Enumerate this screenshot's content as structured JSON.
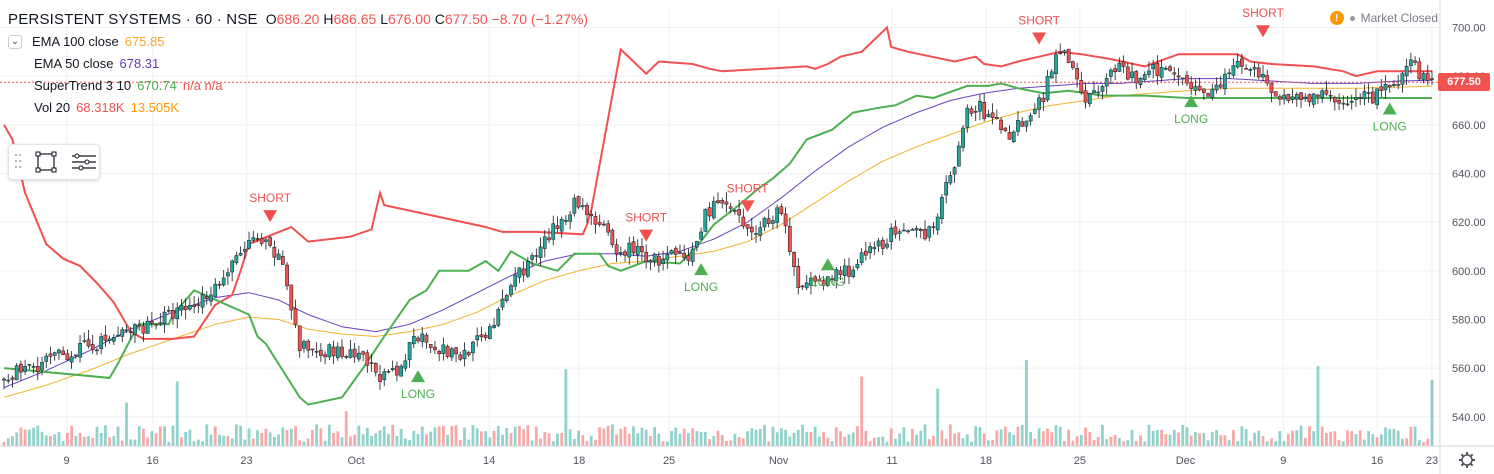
{
  "header": {
    "symbol": "PERSISTENT SYSTEMS · 60 · NSE",
    "ohlc": {
      "o_label": "O",
      "o": "686.20",
      "h_label": "H",
      "h": "686.65",
      "l_label": "L",
      "l": "676.00",
      "c_label": "C",
      "c": "677.50",
      "change": "−8.70 (−1.27%)"
    }
  },
  "indicators": [
    {
      "name": "EMA 100 close",
      "value": "675.85",
      "color": "#f0a830"
    },
    {
      "name": "EMA 50 close",
      "value": "678.31",
      "color": "#673ab7"
    },
    {
      "name": "SuperTrend 3 10",
      "value": "670.74",
      "extra": "n/a  n/a",
      "color": "#4caf50"
    },
    {
      "name": "Vol 20",
      "value": "68.318K",
      "extra": "13.505K",
      "color": "#ef5350"
    }
  ],
  "status": {
    "market": "Market Closed",
    "warning_glyph": "!"
  },
  "current_price": {
    "label": "677.50",
    "value": 677.5
  },
  "chart_data": {
    "type": "candlestick",
    "x_ticks": [
      "9",
      "16",
      "23",
      "Oct",
      "14",
      "18",
      "25",
      "Nov",
      "11",
      "18",
      "25",
      "Dec",
      "9",
      "16",
      "23"
    ],
    "y_ticks": [
      540,
      560,
      580,
      600,
      620,
      640,
      660,
      680,
      700
    ],
    "ylim": [
      528,
      708
    ],
    "price_path": [
      [
        0,
        556
      ],
      [
        10,
        563
      ],
      [
        25,
        572
      ],
      [
        37,
        580
      ],
      [
        45,
        586
      ],
      [
        52,
        597
      ],
      [
        58,
        612
      ],
      [
        62,
        610
      ],
      [
        66,
        603
      ],
      [
        70,
        568
      ],
      [
        75,
        568
      ],
      [
        80,
        566
      ],
      [
        85,
        563
      ],
      [
        90,
        556
      ],
      [
        94,
        558
      ],
      [
        97,
        575
      ],
      [
        100,
        572
      ],
      [
        104,
        567
      ],
      [
        108,
        565
      ],
      [
        113,
        572
      ],
      [
        117,
        582
      ],
      [
        121,
        598
      ],
      [
        126,
        606
      ],
      [
        131,
        619
      ],
      [
        135,
        628
      ],
      [
        138,
        625
      ],
      [
        142,
        617
      ],
      [
        145,
        605
      ],
      [
        148,
        610
      ],
      [
        152,
        606
      ],
      [
        155,
        604
      ],
      [
        158,
        606
      ],
      [
        162,
        604
      ],
      [
        164,
        612
      ],
      [
        166,
        623
      ],
      [
        168,
        628
      ],
      [
        172,
        625
      ],
      [
        176,
        615
      ],
      [
        180,
        620
      ],
      [
        184,
        626
      ],
      [
        186,
        606
      ],
      [
        188,
        594
      ],
      [
        190,
        598
      ],
      [
        193,
        593
      ],
      [
        197,
        599
      ],
      [
        201,
        601
      ],
      [
        203,
        605
      ],
      [
        206,
        609
      ],
      [
        210,
        615
      ],
      [
        214,
        614
      ],
      [
        218,
        616
      ],
      [
        220,
        620
      ],
      [
        222,
        628
      ],
      [
        224,
        640
      ],
      [
        226,
        650
      ],
      [
        228,
        665
      ],
      [
        231,
        667
      ],
      [
        233,
        663
      ],
      [
        235,
        661
      ],
      [
        238,
        656
      ],
      [
        241,
        662
      ],
      [
        244,
        667
      ],
      [
        246,
        672
      ],
      [
        248,
        684
      ],
      [
        250,
        692
      ],
      [
        252,
        688
      ],
      [
        254,
        680
      ],
      [
        256,
        671
      ],
      [
        258,
        672
      ],
      [
        260,
        676
      ],
      [
        263,
        684
      ],
      [
        266,
        680
      ],
      [
        269,
        678
      ],
      [
        272,
        682
      ],
      [
        276,
        683
      ],
      [
        279,
        681
      ],
      [
        282,
        675
      ],
      [
        285,
        674
      ],
      [
        288,
        676
      ],
      [
        291,
        684
      ],
      [
        294,
        685
      ],
      [
        297,
        681
      ],
      [
        300,
        672
      ],
      [
        305,
        672
      ],
      [
        310,
        671
      ],
      [
        315,
        671
      ],
      [
        320,
        670
      ],
      [
        325,
        672
      ],
      [
        330,
        678
      ],
      [
        333,
        684
      ],
      [
        336,
        680
      ],
      [
        338,
        677.5
      ]
    ],
    "supertrend_short": [
      [
        0,
        660
      ],
      [
        2,
        654
      ],
      [
        5,
        632
      ],
      [
        10,
        611
      ],
      [
        14,
        605
      ],
      [
        18,
        602
      ],
      [
        22,
        595
      ],
      [
        26,
        587
      ],
      [
        30,
        575
      ],
      [
        33,
        572
      ],
      [
        40,
        572
      ],
      [
        45,
        573
      ],
      [
        50,
        586
      ],
      [
        54,
        590
      ],
      [
        56,
        600
      ],
      [
        58,
        611
      ],
      [
        68,
        618
      ],
      [
        72,
        612
      ],
      [
        82,
        614
      ],
      [
        87,
        617
      ],
      [
        89,
        632
      ],
      [
        90,
        627
      ],
      [
        114,
        618
      ],
      [
        118,
        616
      ],
      [
        126,
        616
      ],
      [
        137,
        615
      ],
      [
        138,
        619
      ],
      [
        139,
        625
      ],
      [
        146,
        691
      ],
      [
        152,
        681
      ],
      [
        155,
        686
      ],
      [
        163,
        685
      ],
      [
        167,
        683
      ],
      [
        170,
        682
      ],
      [
        190,
        684
      ],
      [
        192,
        683
      ],
      [
        195,
        685
      ],
      [
        198,
        688
      ],
      [
        203,
        690
      ],
      [
        209,
        700
      ],
      [
        210,
        692
      ],
      [
        214,
        690
      ],
      [
        225,
        686
      ],
      [
        230,
        688
      ],
      [
        232,
        685
      ],
      [
        236,
        684
      ],
      [
        240,
        686
      ],
      [
        245,
        688
      ],
      [
        250,
        690
      ],
      [
        255,
        689
      ],
      [
        262,
        687
      ],
      [
        270,
        684
      ],
      [
        278,
        689
      ],
      [
        292,
        689
      ],
      [
        295,
        686
      ],
      [
        300,
        685
      ],
      [
        310,
        684
      ],
      [
        317,
        682
      ],
      [
        320,
        680
      ],
      [
        325,
        682
      ],
      [
        330,
        682
      ],
      [
        338,
        682
      ]
    ],
    "supertrend_long": [
      [
        0,
        560
      ],
      [
        25,
        556
      ],
      [
        27,
        562
      ],
      [
        30,
        572
      ],
      [
        32,
        578
      ],
      [
        39,
        578
      ],
      [
        40,
        582
      ],
      [
        45,
        592
      ],
      [
        58,
        582
      ],
      [
        60,
        573
      ],
      [
        62,
        570
      ],
      [
        70,
        548
      ],
      [
        72,
        545
      ],
      [
        80,
        548
      ],
      [
        85,
        560
      ],
      [
        90,
        573
      ],
      [
        96,
        588
      ],
      [
        100,
        592
      ],
      [
        103,
        600
      ],
      [
        110,
        600
      ],
      [
        114,
        604
      ],
      [
        117,
        600
      ],
      [
        120,
        608
      ],
      [
        125,
        603
      ],
      [
        131,
        600
      ],
      [
        135,
        607
      ],
      [
        141,
        607
      ],
      [
        143,
        602
      ],
      [
        146,
        600
      ],
      [
        152,
        604
      ],
      [
        160,
        603
      ],
      [
        164,
        610
      ],
      [
        168,
        619
      ],
      [
        174,
        627
      ],
      [
        178,
        633
      ],
      [
        182,
        638
      ],
      [
        186,
        644
      ],
      [
        190,
        654
      ],
      [
        196,
        658
      ],
      [
        201,
        665
      ],
      [
        207,
        667
      ],
      [
        211,
        668
      ],
      [
        216,
        672
      ],
      [
        220,
        671
      ],
      [
        228,
        676
      ],
      [
        233,
        676
      ],
      [
        236,
        677
      ],
      [
        240,
        675
      ],
      [
        246,
        673
      ],
      [
        252,
        674
      ],
      [
        260,
        672
      ],
      [
        270,
        672
      ],
      [
        280,
        671
      ],
      [
        290,
        671
      ],
      [
        300,
        671
      ],
      [
        318,
        671
      ],
      [
        325,
        671
      ],
      [
        336,
        671
      ],
      [
        338,
        671
      ]
    ],
    "ema100": [
      [
        0,
        548
      ],
      [
        10,
        553
      ],
      [
        20,
        559
      ],
      [
        30,
        566
      ],
      [
        40,
        572
      ],
      [
        50,
        578
      ],
      [
        58,
        581
      ],
      [
        65,
        580
      ],
      [
        72,
        576
      ],
      [
        80,
        574
      ],
      [
        88,
        573
      ],
      [
        96,
        575
      ],
      [
        104,
        578
      ],
      [
        112,
        583
      ],
      [
        120,
        590
      ],
      [
        128,
        596
      ],
      [
        136,
        600
      ],
      [
        144,
        603
      ],
      [
        152,
        604
      ],
      [
        160,
        606
      ],
      [
        168,
        608
      ],
      [
        176,
        612
      ],
      [
        184,
        619
      ],
      [
        192,
        628
      ],
      [
        200,
        637
      ],
      [
        208,
        645
      ],
      [
        216,
        651
      ],
      [
        224,
        656
      ],
      [
        232,
        661
      ],
      [
        240,
        665
      ],
      [
        248,
        668
      ],
      [
        256,
        670
      ],
      [
        264,
        672
      ],
      [
        272,
        673
      ],
      [
        280,
        674
      ],
      [
        290,
        675
      ],
      [
        300,
        675
      ],
      [
        310,
        675
      ],
      [
        320,
        675
      ],
      [
        330,
        675.5
      ],
      [
        338,
        675.85
      ]
    ],
    "ema50": [
      [
        0,
        552
      ],
      [
        10,
        559
      ],
      [
        20,
        567
      ],
      [
        30,
        576
      ],
      [
        40,
        583
      ],
      [
        50,
        589
      ],
      [
        58,
        591
      ],
      [
        65,
        588
      ],
      [
        72,
        582
      ],
      [
        80,
        577
      ],
      [
        88,
        575
      ],
      [
        96,
        578
      ],
      [
        104,
        584
      ],
      [
        112,
        591
      ],
      [
        120,
        598
      ],
      [
        128,
        604
      ],
      [
        136,
        607
      ],
      [
        144,
        607
      ],
      [
        152,
        606
      ],
      [
        160,
        608
      ],
      [
        168,
        613
      ],
      [
        176,
        620
      ],
      [
        184,
        630
      ],
      [
        192,
        641
      ],
      [
        200,
        651
      ],
      [
        208,
        659
      ],
      [
        216,
        665
      ],
      [
        224,
        670
      ],
      [
        232,
        673
      ],
      [
        240,
        675
      ],
      [
        248,
        676
      ],
      [
        256,
        677
      ],
      [
        264,
        677
      ],
      [
        272,
        678
      ],
      [
        280,
        679
      ],
      [
        290,
        679
      ],
      [
        300,
        678
      ],
      [
        310,
        677
      ],
      [
        320,
        677
      ],
      [
        330,
        678
      ],
      [
        338,
        678.31
      ]
    ],
    "signals": [
      {
        "type": "SHORT",
        "bar": 63,
        "price": 620
      },
      {
        "type": "SHORT",
        "bar": 152,
        "price": 612
      },
      {
        "type": "SHORT",
        "bar": 176,
        "price": 624
      },
      {
        "type": "SHORT",
        "bar": 245,
        "price": 693
      },
      {
        "type": "SHORT",
        "bar": 298,
        "price": 696
      },
      {
        "type": "LONG",
        "bar": 98,
        "price": 560
      },
      {
        "type": "LONG",
        "bar": 165,
        "price": 604
      },
      {
        "type": "LONG",
        "bar": 195,
        "price": 606
      },
      {
        "type": "LONG",
        "bar": 281,
        "price": 673
      },
      {
        "type": "LONG",
        "bar": 328,
        "price": 670
      }
    ],
    "volume_ylim": [
      0,
      230000
    ]
  },
  "colors": {
    "up": "#26a69a",
    "down": "#ef5350",
    "short": "#f05050",
    "long": "#4caf50",
    "ema100": "#f0b429",
    "ema50": "#6a3fc1",
    "grid": "#eef0f3",
    "axis_text": "#50535e"
  }
}
